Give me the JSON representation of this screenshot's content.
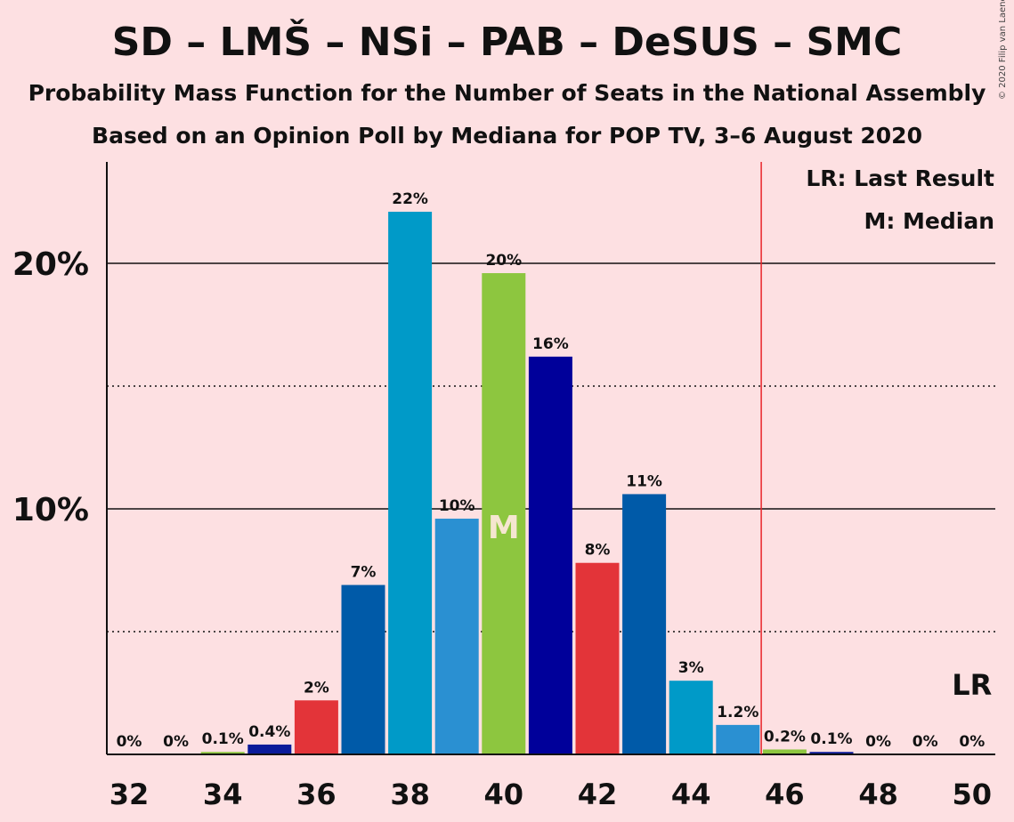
{
  "title": "SD – LMŠ – NSi – PAB – DeSUS – SMC",
  "subtitle": "Probability Mass Function for the Number of Seats in the National Assembly",
  "subtitle2": "Based on an Opinion Poll by Mediana for POP TV, 3–6 August 2020",
  "copyright": "© 2020 Filip van Laenen",
  "legend": {
    "last_result": "LR: Last Result",
    "median": "M: Median"
  },
  "markers": {
    "median_label": "M",
    "last_result_label": "LR"
  },
  "colors": {
    "background": "#fde0e2",
    "last_result_line": "#e8252a",
    "palette": [
      "#8dc63f",
      "#0a1b9a",
      "#e33439",
      "#005aa8",
      "#009ac8",
      "#2a90d2",
      "#00009a"
    ]
  },
  "chart_data": {
    "type": "bar",
    "x": [
      32,
      33,
      34,
      35,
      36,
      37,
      38,
      39,
      40,
      41,
      42,
      43,
      44,
      45,
      46,
      47,
      48,
      49,
      50
    ],
    "values": [
      0,
      0,
      0.1,
      0.4,
      2.2,
      6.9,
      22.1,
      9.6,
      19.6,
      16.2,
      7.8,
      10.6,
      3.0,
      1.2,
      0.2,
      0.1,
      0,
      0,
      0
    ],
    "labels": [
      "0%",
      "0%",
      "0.1%",
      "0.4%",
      "2%",
      "7%",
      "22%",
      "10%",
      "20%",
      "16%",
      "8%",
      "11%",
      "3%",
      "1.2%",
      "0.2%",
      "0.1%",
      "0%",
      "0%",
      "0%"
    ],
    "bar_colors": [
      "#8dc63f",
      "#0a1b9a",
      "#8dc63f",
      "#0a1b9a",
      "#e33439",
      "#005aa8",
      "#009ac8",
      "#2a90d2",
      "#8dc63f",
      "#00009a",
      "#e33439",
      "#005aa8",
      "#009ac8",
      "#2a90d2",
      "#8dc63f",
      "#0a1b9a",
      "#e33439",
      "#005aa8",
      "#009ac8"
    ],
    "x_ticks": [
      32,
      34,
      36,
      38,
      40,
      42,
      44,
      46,
      48,
      50
    ],
    "y_ticks": [
      {
        "value": 10,
        "label": "10%"
      },
      {
        "value": 20,
        "label": "20%"
      }
    ],
    "y_minor_gridlines": [
      5,
      15
    ],
    "ylim": [
      0,
      24
    ],
    "median_seat": 40,
    "last_result_seat": 50,
    "majority_line_between": [
      45,
      46
    ],
    "grid": true,
    "legend_position": "top-right"
  }
}
